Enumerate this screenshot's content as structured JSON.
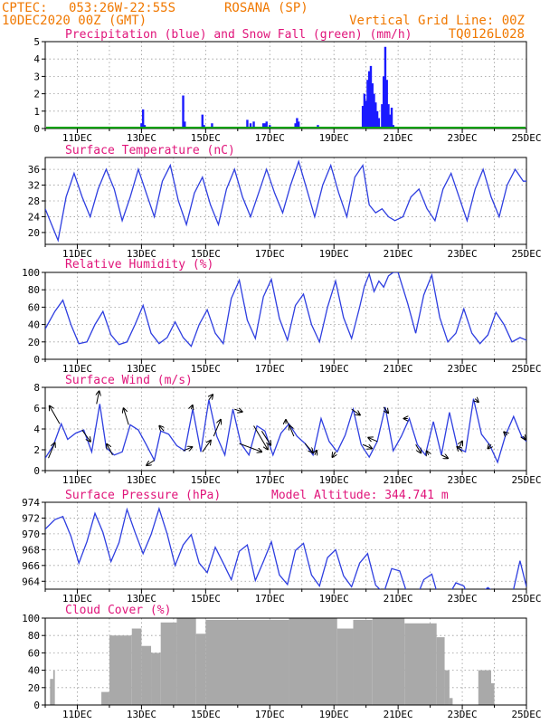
{
  "header": {
    "center": "CPTEC:",
    "coords": "053:26W-22:55S",
    "station": "ROSANA (SP)",
    "run": "10DEC2020 00Z (GMT)",
    "grid_note": "Vertical Grid Line: 00Z",
    "model_code": "TQ0126L028"
  },
  "colors": {
    "header": "#f07800",
    "titles": "#e0147a",
    "precip": "#1a1aff",
    "snow": "#00a000",
    "line": "#2e3ee0",
    "arrow": "#000000",
    "cloud": "#a9a9a9"
  },
  "chart_data": [
    {
      "type": "bar",
      "title": "Precipitation (blue) and Snow Fall (green) (mm/h)",
      "x_tick_labels": [
        "11DEC",
        "13DEC",
        "15DEC",
        "17DEC",
        "19DEC",
        "21DEC",
        "23DEC",
        "25DEC"
      ],
      "ylim": [
        0,
        5
      ],
      "y_ticks": [
        0,
        1,
        2,
        3,
        4,
        5
      ],
      "grid": true,
      "series": [
        {
          "name": "Precipitation",
          "color": "blue",
          "values_x_days_since_10DEC_00Z": [
            3.0,
            3.05,
            3.1,
            4.3,
            4.35,
            4.9,
            4.95,
            5.2,
            6.3,
            6.4,
            6.5,
            6.8,
            6.85,
            6.9,
            7.0,
            7.8,
            7.85,
            7.9,
            8.5,
            9.9,
            9.95,
            10.0,
            10.05,
            10.1,
            10.15,
            10.2,
            10.25,
            10.3,
            10.35,
            10.4,
            10.5,
            10.55,
            10.6,
            10.65,
            10.7,
            10.75,
            10.8,
            10.85
          ]
        },
        {
          "name": "Precipitation values (mm/h)",
          "values": [
            0.3,
            1.1,
            0.2,
            1.9,
            0.4,
            0.8,
            0.2,
            0.3,
            0.5,
            0.3,
            0.4,
            0.3,
            0.3,
            0.4,
            0.2,
            0.3,
            0.6,
            0.4,
            0.2,
            1.3,
            2.0,
            1.6,
            2.8,
            3.3,
            3.6,
            2.6,
            2.0,
            1.5,
            1.0,
            0.6,
            1.4,
            3.0,
            4.7,
            2.8,
            1.4,
            0.8,
            1.2,
            0.2
          ]
        }
      ]
    },
    {
      "type": "line",
      "title": "Surface Temperature (nC)",
      "x_tick_labels": [
        "11DEC",
        "13DEC",
        "15DEC",
        "17DEC",
        "19DEC",
        "21DEC",
        "23DEC",
        "25DEC"
      ],
      "ylim": [
        17,
        39
      ],
      "y_ticks": [
        20,
        24,
        28,
        32,
        36
      ],
      "grid": true,
      "x_days": [
        0.0,
        0.2,
        0.4,
        0.65,
        0.9,
        1.15,
        1.4,
        1.65,
        1.9,
        2.15,
        2.4,
        2.65,
        2.9,
        3.15,
        3.4,
        3.65,
        3.9,
        4.15,
        4.4,
        4.65,
        4.9,
        5.15,
        5.4,
        5.65,
        5.9,
        6.15,
        6.4,
        6.65,
        6.9,
        7.15,
        7.4,
        7.65,
        7.9,
        8.15,
        8.4,
        8.65,
        8.9,
        9.15,
        9.4,
        9.65,
        9.9,
        10.1,
        10.3,
        10.5,
        10.7,
        10.9,
        11.15,
        11.4,
        11.65,
        11.9,
        12.15,
        12.4,
        12.65,
        12.9,
        13.15,
        13.4,
        13.65,
        13.9,
        14.15,
        14.4,
        14.65,
        14.9,
        15.0
      ],
      "values": [
        26,
        22,
        18,
        29,
        35,
        29,
        24,
        31,
        36,
        31,
        23,
        29,
        36,
        30,
        24,
        33,
        37,
        28,
        22,
        30,
        34,
        27,
        22,
        31,
        36,
        29,
        24,
        30,
        36,
        30,
        25,
        32,
        38,
        31,
        24,
        32,
        37,
        30,
        24,
        34,
        37,
        27,
        25,
        26,
        24,
        23,
        24,
        29,
        31,
        26,
        23,
        31,
        35,
        29,
        23,
        31,
        36,
        29,
        24,
        32,
        36,
        33,
        33
      ]
    },
    {
      "type": "line",
      "title": "Relative Humidity (%)",
      "x_tick_labels": [
        "11DEC",
        "13DEC",
        "15DEC",
        "17DEC",
        "19DEC",
        "21DEC",
        "23DEC",
        "25DEC"
      ],
      "ylim": [
        0,
        100
      ],
      "y_ticks": [
        0,
        20,
        40,
        60,
        80,
        100
      ],
      "grid": true,
      "x_days": [
        0.0,
        0.3,
        0.55,
        0.8,
        1.05,
        1.3,
        1.55,
        1.8,
        2.05,
        2.3,
        2.55,
        2.8,
        3.05,
        3.3,
        3.55,
        3.8,
        4.05,
        4.3,
        4.55,
        4.8,
        5.05,
        5.3,
        5.55,
        5.8,
        6.05,
        6.3,
        6.55,
        6.8,
        7.05,
        7.3,
        7.55,
        7.8,
        8.05,
        8.3,
        8.55,
        8.8,
        9.05,
        9.3,
        9.55,
        9.8,
        9.95,
        10.1,
        10.25,
        10.4,
        10.55,
        10.7,
        10.85,
        11.0,
        11.3,
        11.55,
        11.8,
        12.05,
        12.3,
        12.55,
        12.8,
        13.05,
        13.3,
        13.55,
        13.8,
        14.05,
        14.3,
        14.55,
        14.8,
        15.0
      ],
      "values": [
        35,
        55,
        68,
        40,
        18,
        20,
        40,
        55,
        28,
        17,
        20,
        40,
        62,
        30,
        18,
        25,
        43,
        25,
        15,
        40,
        57,
        30,
        18,
        70,
        91,
        45,
        24,
        72,
        92,
        47,
        22,
        62,
        75,
        40,
        20,
        60,
        90,
        48,
        24,
        60,
        84,
        98,
        78,
        90,
        83,
        96,
        100,
        100,
        64,
        30,
        74,
        97,
        48,
        20,
        30,
        58,
        30,
        18,
        28,
        54,
        40,
        20,
        25,
        22
      ]
    },
    {
      "type": "line",
      "title": "Surface Wind (m/s)",
      "x_tick_labels": [
        "11DEC",
        "13DEC",
        "15DEC",
        "17DEC",
        "19DEC",
        "21DEC",
        "23DEC",
        "25DEC"
      ],
      "ylim": [
        0,
        8
      ],
      "y_ticks": [
        0,
        2,
        4,
        6,
        8
      ],
      "grid": true,
      "x_days": [
        0.0,
        0.25,
        0.5,
        0.7,
        0.95,
        1.2,
        1.45,
        1.7,
        1.9,
        2.15,
        2.4,
        2.65,
        2.9,
        3.15,
        3.4,
        3.6,
        3.85,
        4.1,
        4.35,
        4.6,
        4.85,
        5.1,
        5.35,
        5.6,
        5.85,
        6.1,
        6.35,
        6.6,
        6.85,
        7.1,
        7.35,
        7.6,
        7.85,
        8.1,
        8.35,
        8.6,
        8.85,
        9.1,
        9.35,
        9.6,
        9.85,
        10.1,
        10.35,
        10.6,
        10.85,
        11.1,
        11.35,
        11.6,
        11.85,
        12.1,
        12.35,
        12.6,
        12.85,
        13.1,
        13.35,
        13.6,
        13.85,
        14.1,
        14.35,
        14.6,
        14.85,
        15.0
      ],
      "values": [
        1.2,
        2.4,
        4.5,
        3.0,
        3.6,
        3.9,
        1.8,
        6.4,
        2.2,
        1.5,
        1.8,
        4.4,
        3.9,
        2.5,
        1.0,
        3.8,
        3.5,
        2.4,
        1.9,
        5.9,
        1.8,
        6.8,
        3.3,
        1.5,
        5.9,
        2.6,
        1.5,
        4.3,
        3.8,
        1.5,
        3.6,
        4.5,
        3.3,
        2.6,
        1.5,
        5.0,
        2.8,
        1.8,
        3.4,
        5.9,
        2.5,
        1.3,
        2.8,
        6.1,
        1.9,
        3.3,
        5.0,
        2.5,
        1.5,
        4.7,
        1.5,
        5.6,
        2.2,
        1.8,
        6.9,
        3.5,
        2.5,
        0.8,
        3.4,
        5.2,
        3.3,
        2.8
      ],
      "vectors": [
        {
          "day": 0.1,
          "u": 1.0,
          "v": 2.4
        },
        {
          "day": 0.45,
          "u": -1.6,
          "v": 2.8
        },
        {
          "day": 1.15,
          "u": 1.3,
          "v": -1.8
        },
        {
          "day": 1.6,
          "u": 0.4,
          "v": 2.0
        },
        {
          "day": 2.1,
          "u": -0.9,
          "v": 1.7
        },
        {
          "day": 2.6,
          "u": -0.8,
          "v": 2.6
        },
        {
          "day": 3.4,
          "u": -1.2,
          "v": -0.8
        },
        {
          "day": 3.7,
          "u": -0.7,
          "v": 0.8
        },
        {
          "day": 4.3,
          "u": 1.4,
          "v": 0.6
        },
        {
          "day": 4.55,
          "u": 0.2,
          "v": 0.6
        },
        {
          "day": 4.9,
          "u": 1.3,
          "v": 1.8
        },
        {
          "day": 5.1,
          "u": 0.6,
          "v": 0.8
        },
        {
          "day": 5.25,
          "u": 1.1,
          "v": 2.6
        },
        {
          "day": 5.9,
          "u": 1.2,
          "v": -0.4
        },
        {
          "day": 6.05,
          "u": 3.5,
          "v": -1.3
        },
        {
          "day": 6.5,
          "u": 2.2,
          "v": -3.7
        },
        {
          "day": 6.75,
          "u": 1.4,
          "v": -2.2
        },
        {
          "day": 7.5,
          "u": 0.0,
          "v": 0.6
        },
        {
          "day": 7.75,
          "u": -0.7,
          "v": 1.7
        },
        {
          "day": 8.1,
          "u": 1.2,
          "v": -1.4
        },
        {
          "day": 8.4,
          "u": 0.3,
          "v": 0.7
        },
        {
          "day": 9.05,
          "u": -0.5,
          "v": -0.8
        },
        {
          "day": 9.55,
          "u": 1.3,
          "v": -0.9
        },
        {
          "day": 9.9,
          "u": 1.4,
          "v": -0.6
        },
        {
          "day": 10.35,
          "u": -1.4,
          "v": 0.6
        },
        {
          "day": 10.55,
          "u": 0.7,
          "v": -0.9
        },
        {
          "day": 11.3,
          "u": -0.6,
          "v": 0.0
        },
        {
          "day": 11.55,
          "u": 0.8,
          "v": -1.3
        },
        {
          "day": 11.95,
          "u": -0.3,
          "v": 0.6
        },
        {
          "day": 12.35,
          "u": 1.0,
          "v": -0.5
        },
        {
          "day": 12.9,
          "u": 0.5,
          "v": 1.0
        },
        {
          "day": 13.0,
          "u": -0.8,
          "v": 0.8
        },
        {
          "day": 13.4,
          "u": 0.5,
          "v": -0.5
        },
        {
          "day": 13.9,
          "u": -0.5,
          "v": -0.6
        },
        {
          "day": 14.4,
          "u": -0.5,
          "v": 0.5
        },
        {
          "day": 14.9,
          "u": 0.3,
          "v": -0.5
        }
      ]
    },
    {
      "type": "line",
      "title": "Surface Pressure (hPa)",
      "annotation": "Model Altitude: 344.741 m",
      "x_tick_labels": [
        "11DEC",
        "13DEC",
        "15DEC",
        "17DEC",
        "19DEC",
        "21DEC",
        "23DEC",
        "25DEC"
      ],
      "ylim": [
        963,
        974
      ],
      "y_ticks": [
        964,
        966,
        968,
        970,
        972,
        974
      ],
      "grid": true,
      "x_days": [
        0.0,
        0.3,
        0.55,
        0.8,
        1.05,
        1.3,
        1.55,
        1.8,
        2.05,
        2.3,
        2.55,
        2.8,
        3.05,
        3.3,
        3.55,
        3.8,
        4.05,
        4.3,
        4.55,
        4.8,
        5.05,
        5.3,
        5.55,
        5.8,
        6.05,
        6.3,
        6.55,
        6.8,
        7.05,
        7.3,
        7.55,
        7.8,
        8.05,
        8.3,
        8.55,
        8.8,
        9.05,
        9.3,
        9.55,
        9.8,
        10.05,
        10.3,
        10.55,
        10.8,
        11.05,
        11.3,
        11.55,
        11.8,
        12.05,
        12.3,
        12.55,
        12.8,
        13.05,
        13.3,
        13.55,
        13.8,
        14.05,
        14.3,
        14.55,
        14.8,
        15.0
      ],
      "values": [
        970.6,
        971.8,
        972.2,
        969.7,
        966.3,
        969.0,
        972.6,
        970.2,
        966.5,
        968.9,
        973.1,
        970.2,
        967.5,
        969.9,
        973.2,
        970.0,
        966.0,
        968.6,
        969.9,
        966.3,
        965.1,
        968.3,
        966.3,
        964.2,
        967.8,
        968.6,
        964.1,
        966.5,
        969.0,
        964.8,
        963.6,
        967.9,
        968.8,
        964.8,
        963.4,
        967.0,
        968.0,
        964.7,
        963.3,
        966.3,
        967.5,
        963.5,
        962.5,
        965.6,
        965.3,
        962.2,
        961.7,
        964.2,
        964.9,
        961.3,
        962.0,
        963.8,
        963.4,
        961.1,
        962.5,
        963.2,
        962.5,
        961.1,
        962.1,
        966.6,
        963.3
      ]
    },
    {
      "type": "bar",
      "title": "Cloud Cover (%)",
      "x_tick_labels": [
        "11DEC",
        "13DEC",
        "15DEC",
        "17DEC",
        "19DEC",
        "21DEC",
        "23DEC",
        "25DEC"
      ],
      "ylim": [
        0,
        100
      ],
      "y_ticks": [
        0,
        20,
        40,
        60,
        80,
        100
      ],
      "grid": true,
      "segments_days_value": [
        [
          0.15,
          0.25,
          30
        ],
        [
          0.25,
          0.3,
          40
        ],
        [
          0.3,
          1.75,
          0
        ],
        [
          1.75,
          2.0,
          15
        ],
        [
          2.0,
          2.7,
          80
        ],
        [
          2.7,
          3.0,
          88
        ],
        [
          3.0,
          3.3,
          68
        ],
        [
          3.3,
          3.6,
          60
        ],
        [
          3.6,
          4.1,
          95
        ],
        [
          4.1,
          4.7,
          100
        ],
        [
          4.7,
          5.0,
          82
        ],
        [
          5.0,
          7.6,
          98
        ],
        [
          7.6,
          9.1,
          100
        ],
        [
          9.1,
          9.6,
          88
        ],
        [
          9.6,
          10.2,
          98
        ],
        [
          10.2,
          11.2,
          100
        ],
        [
          11.2,
          12.2,
          94
        ],
        [
          12.2,
          12.45,
          78
        ],
        [
          12.45,
          12.6,
          40
        ],
        [
          12.6,
          12.7,
          8
        ],
        [
          13.5,
          13.9,
          40
        ],
        [
          13.9,
          14.0,
          25
        ]
      ]
    }
  ]
}
